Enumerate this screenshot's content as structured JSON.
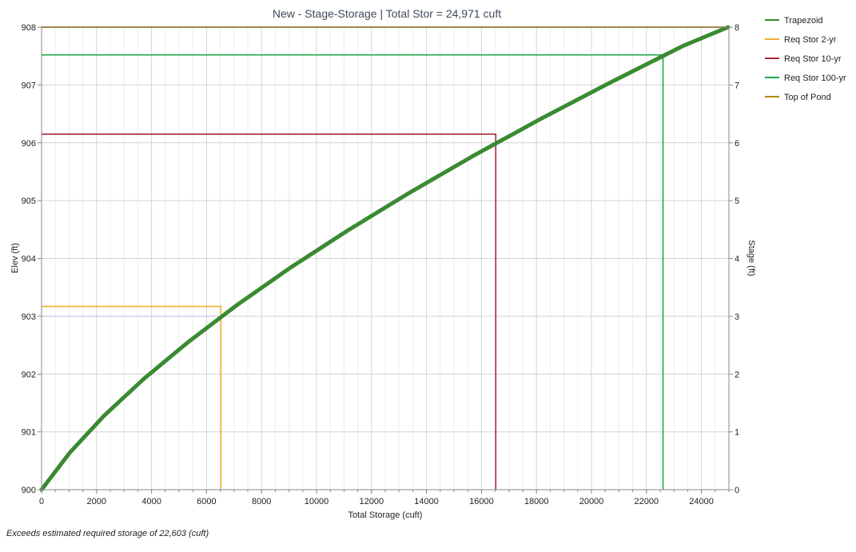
{
  "chart_data": {
    "type": "line",
    "title": "New - Stage-Storage | Total Stor = 24,971 cuft",
    "xlabel": "Total Storage (cuft)",
    "ylabel": "Elev (ft)",
    "y2label": "Stage (ft)",
    "xlim": [
      0,
      25000
    ],
    "ylim": [
      900,
      908
    ],
    "y2lim": [
      0,
      8
    ],
    "xticks": [
      0,
      2000,
      4000,
      6000,
      8000,
      10000,
      12000,
      14000,
      16000,
      18000,
      20000,
      22000,
      24000
    ],
    "yticks": [
      900,
      901,
      902,
      903,
      904,
      905,
      906,
      907,
      908
    ],
    "y2ticks": [
      0,
      1,
      2,
      3,
      4,
      5,
      6,
      7,
      8
    ],
    "grid": true,
    "legend_position": "right",
    "series": [
      {
        "name": "Trapezoid",
        "color": "#3a8a32",
        "x": [
          0,
          1025,
          2275,
          3725,
          5350,
          7125,
          9050,
          11125,
          13325,
          15650,
          18100,
          20675,
          23350,
          24971
        ],
        "y": [
          900,
          900.64,
          901.28,
          901.92,
          902.56,
          903.2,
          903.84,
          904.48,
          905.12,
          905.76,
          906.4,
          907.04,
          907.68,
          908
        ]
      },
      {
        "name": "Req Stor 2-yr",
        "color": "#f0b030",
        "x": 6520,
        "y": 903.17
      },
      {
        "name": "Req Stor 10-yr",
        "color": "#a8283c",
        "x": 16520,
        "y": 906.15
      },
      {
        "name": "Req Stor 100-yr",
        "color": "#1fa64a",
        "x": 22603,
        "y": 907.52
      },
      {
        "name": "Top of Pond",
        "color": "#b8860b",
        "y": 908
      }
    ],
    "guide_line": {
      "color": "#c7b8e8",
      "y": 903.0
    }
  },
  "footnote": "Exceeds estimated required storage of 22,603 (cuft)"
}
